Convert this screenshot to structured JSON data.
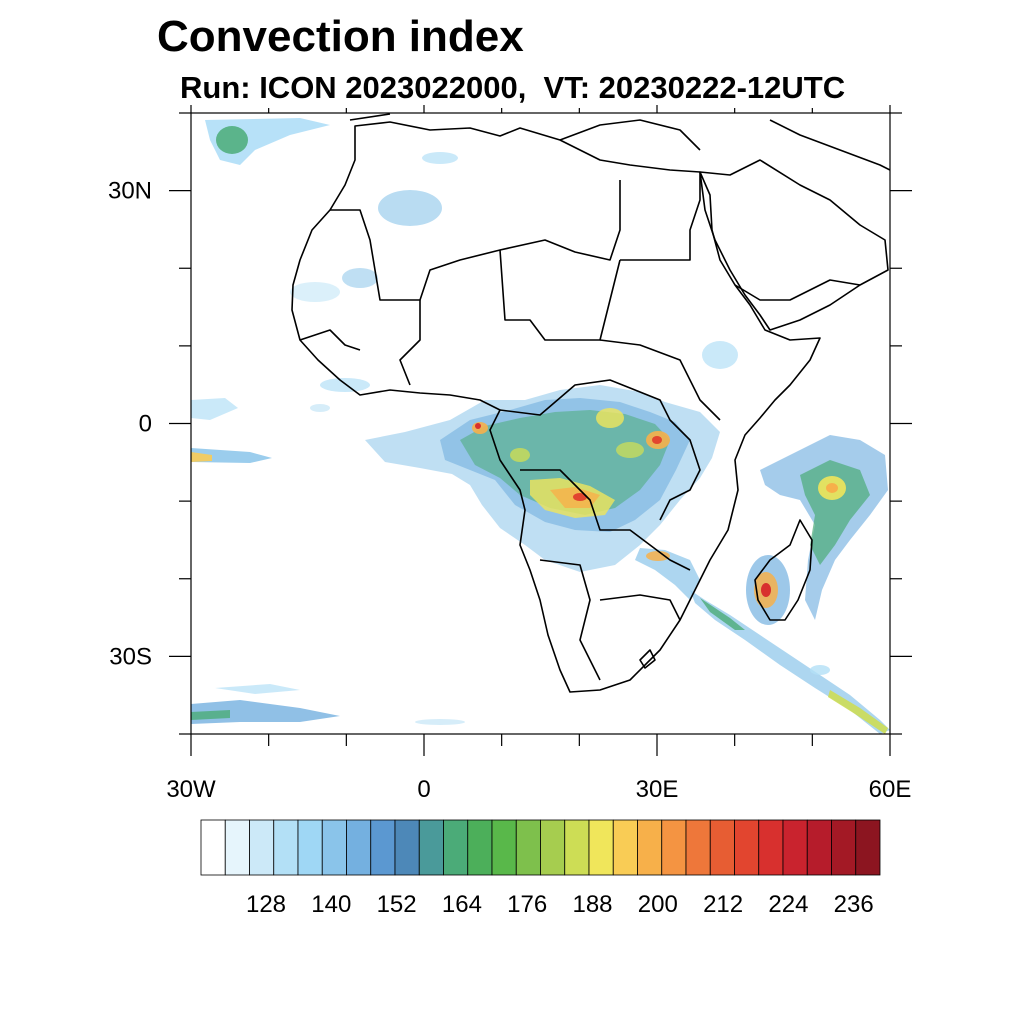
{
  "title": "Convection index",
  "subtitle": "Run: ICON 2023022000,  VT: 20230222-12UTC",
  "axes": {
    "x_ticks": [
      {
        "value": -30,
        "label": "30W"
      },
      {
        "value": 0,
        "label": "0"
      },
      {
        "value": 30,
        "label": "30E"
      },
      {
        "value": 60,
        "label": "60E"
      }
    ],
    "y_ticks": [
      {
        "value": 30,
        "label": "30N"
      },
      {
        "value": 0,
        "label": "0"
      },
      {
        "value": -30,
        "label": "30S"
      }
    ],
    "lon_range": [
      -30,
      60
    ],
    "lat_range": [
      -40,
      40
    ]
  },
  "colorbar": {
    "labels": [
      "128",
      "140",
      "152",
      "164",
      "176",
      "188",
      "200",
      "212",
      "224",
      "236"
    ],
    "colors": [
      "#ffffff",
      "#e6f5fc",
      "#cce9f8",
      "#b3e0f6",
      "#9fd7f5",
      "#8ac4ea",
      "#74b0e0",
      "#5b98d1",
      "#4d88b8",
      "#4a9a9a",
      "#4bab78",
      "#4caf5a",
      "#59b84a",
      "#7ec04c",
      "#a6cd4f",
      "#cddd55",
      "#f0e65b",
      "#f9cc55",
      "#f7b04a",
      "#f49442",
      "#ee773a",
      "#e75d33",
      "#e2452f",
      "#d8302e",
      "#c9232e",
      "#b61c2b",
      "#a31925",
      "#8c1520"
    ]
  }
}
